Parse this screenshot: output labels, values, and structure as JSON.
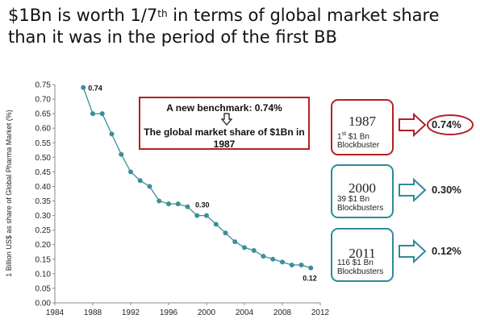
{
  "title": {
    "pre": "$1Bn is worth 1/7",
    "sup": "th",
    "post": " in terms of global market share than it was in the period of the first BB"
  },
  "note": {
    "line1": "A new benchmark: 0.74%",
    "line2": "The global market share of $1Bn in 1987"
  },
  "boxes": [
    {
      "year": "1987",
      "sub_count": "1",
      "sub_sup": "st",
      "sub_rest": " $1 Bn",
      "sub_line2": "Blockbuster",
      "share": "0.74%",
      "color": "#b32024"
    },
    {
      "year": "2000",
      "sub_count": "39",
      "sub_sup": "",
      "sub_rest": " $1 Bn",
      "sub_line2": "Blockbusters",
      "share": "0.30%",
      "color": "#2e8a9a"
    },
    {
      "year": "2011",
      "sub_count": "116",
      "sub_sup": "",
      "sub_rest": " $1 Bn",
      "sub_line2": "Blockbusters",
      "share": "0.12%",
      "color": "#2e8a9a"
    }
  ],
  "chart_data": {
    "type": "line",
    "ylabel": "1 Billion US$ as share of Global Pharma Market (%)",
    "xlim": [
      1984,
      2012
    ],
    "ylim": [
      0,
      0.75
    ],
    "xticks": [
      1984,
      1988,
      1992,
      1996,
      2000,
      2004,
      2008,
      2012
    ],
    "yticks": [
      0.0,
      0.05,
      0.1,
      0.15,
      0.2,
      0.25,
      0.3,
      0.35,
      0.4,
      0.45,
      0.5,
      0.55,
      0.6,
      0.65,
      0.7,
      0.75
    ],
    "x": [
      1987,
      1988,
      1989,
      1990,
      1991,
      1992,
      1993,
      1994,
      1995,
      1996,
      1997,
      1998,
      1999,
      2000,
      2001,
      2002,
      2003,
      2004,
      2005,
      2006,
      2007,
      2008,
      2009,
      2010,
      2011
    ],
    "y": [
      0.74,
      0.65,
      0.65,
      0.58,
      0.51,
      0.45,
      0.42,
      0.4,
      0.35,
      0.34,
      0.34,
      0.33,
      0.3,
      0.3,
      0.27,
      0.24,
      0.21,
      0.19,
      0.18,
      0.16,
      0.15,
      0.14,
      0.13,
      0.13,
      0.12
    ],
    "annotations": [
      {
        "x": 1987,
        "y": 0.74,
        "text": "0.74"
      },
      {
        "x": 2000,
        "y": 0.3,
        "text": "0.30"
      },
      {
        "x": 2011,
        "y": 0.12,
        "text": "0.12"
      }
    ],
    "line_color": "#3c8e98",
    "grid": false
  }
}
